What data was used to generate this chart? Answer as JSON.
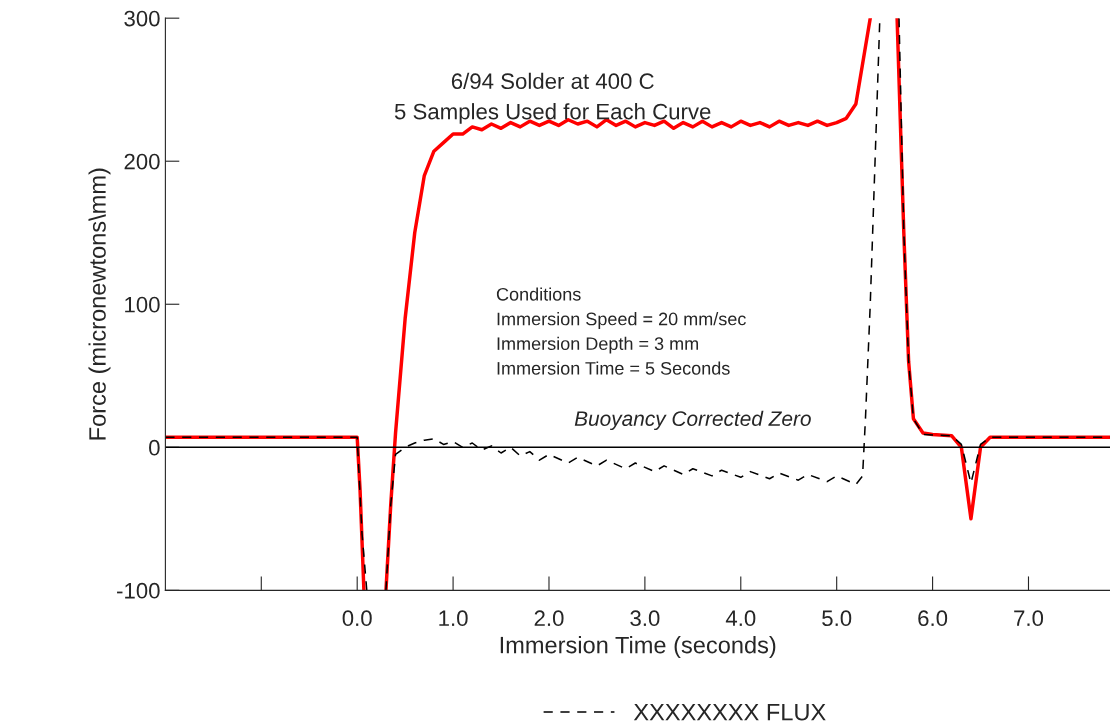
{
  "chart_data": {
    "type": "line",
    "xlabel": "Immersion Time (seconds)",
    "ylabel": "Force (micronewtons\\mm)",
    "xlim": [
      -2,
      7.85
    ],
    "ylim": [
      -100,
      300
    ],
    "xticks": [
      {
        "value": -1,
        "label": null
      },
      {
        "value": 0,
        "label": "0.0"
      },
      {
        "value": 1,
        "label": "1.0"
      },
      {
        "value": 2,
        "label": "2.0"
      },
      {
        "value": 3,
        "label": "3.0"
      },
      {
        "value": 4,
        "label": "4.0"
      },
      {
        "value": 5,
        "label": "5.0"
      },
      {
        "value": 6,
        "label": "6.0"
      },
      {
        "value": 7,
        "label": "7.0"
      }
    ],
    "yticks": [
      -100,
      0,
      100,
      200,
      300
    ],
    "grid": false,
    "legend": "bottom",
    "annotations": [
      "6/94 Solder at 400 C\n5 Samples Used for Each Curve",
      "Conditions\nImmersion Speed = 20 mm/sec\nImmersion Depth = 3 mm\nImmersion Time = 5 Seconds"
    ],
    "ref_lines": [
      {
        "axis": "y",
        "value": 0,
        "label": "Buoyancy Corrected Zero",
        "color": "#000000",
        "line_style": "solid"
      }
    ],
    "series": [
      {
        "color": "#ff0000",
        "line_style": "solid",
        "x": [
          -2,
          0,
          0.03,
          0.07,
          0.15,
          0.3,
          0.35,
          0.4,
          0.5,
          0.6,
          0.7,
          0.8,
          0.9,
          1.0,
          1.1,
          1.2,
          1.3,
          1.4,
          1.5,
          1.6,
          1.7,
          1.8,
          1.9,
          2.0,
          2.1,
          2.2,
          2.3,
          2.4,
          2.5,
          2.6,
          2.7,
          2.8,
          2.9,
          3.0,
          3.1,
          3.2,
          3.3,
          3.4,
          3.5,
          3.6,
          3.7,
          3.8,
          3.9,
          4.0,
          4.1,
          4.2,
          4.3,
          4.4,
          4.5,
          4.6,
          4.7,
          4.8,
          4.9,
          5.0,
          5.1,
          5.2,
          5.3,
          5.35,
          5.5,
          5.63,
          5.7,
          5.75,
          5.8,
          5.9,
          6.0,
          6.2,
          6.3,
          6.4,
          6.5,
          6.6,
          7.85
        ],
        "values": [
          7,
          7,
          -30,
          -100,
          null,
          -100,
          -40,
          10,
          90,
          150,
          190,
          207,
          213,
          219,
          219,
          224,
          222,
          226,
          223,
          227,
          224,
          228,
          225,
          228,
          225,
          229,
          226,
          228,
          224,
          229,
          225,
          228,
          224,
          227,
          225,
          228,
          223,
          227,
          224,
          228,
          224,
          227,
          224,
          228,
          225,
          227,
          224,
          228,
          225,
          227,
          225,
          228,
          225,
          227,
          230,
          240,
          280,
          300,
          null,
          300,
          150,
          60,
          20,
          10,
          9,
          8,
          0,
          -50,
          0,
          7,
          7
        ]
      },
      {
        "name": "XXXXXXXX FLUX",
        "color": "#000000",
        "line_style": "dashed",
        "x": [
          -2,
          0,
          0.05,
          0.1,
          0.2,
          0.3,
          0.35,
          0.4,
          0.5,
          0.6,
          0.7,
          0.8,
          0.9,
          1.0,
          1.1,
          1.2,
          1.3,
          1.4,
          1.5,
          1.6,
          1.7,
          1.8,
          1.9,
          2.0,
          2.2,
          2.3,
          2.5,
          2.6,
          2.8,
          2.9,
          3.1,
          3.2,
          3.4,
          3.5,
          3.7,
          3.8,
          4.0,
          4.1,
          4.3,
          4.4,
          4.6,
          4.7,
          4.9,
          5.0,
          5.2,
          5.27,
          5.3,
          5.35,
          5.4,
          5.45,
          5.55,
          5.65,
          5.7,
          5.75,
          5.8,
          5.9,
          6.2,
          6.3,
          6.4,
          6.5,
          6.6,
          7.85
        ],
        "values": [
          7,
          7,
          -60,
          -100,
          null,
          -100,
          -40,
          -5,
          0,
          3,
          5,
          6,
          2,
          4,
          0,
          3,
          -2,
          1,
          -4,
          0,
          -6,
          -3,
          -9,
          -5,
          -11,
          -7,
          -13,
          -9,
          -15,
          -11,
          -17,
          -13,
          -19,
          -15,
          -20,
          -16,
          -21,
          -17,
          -22,
          -18,
          -23,
          -19,
          -24,
          -20,
          -26,
          -20,
          20,
          100,
          200,
          300,
          null,
          300,
          150,
          60,
          20,
          9,
          8,
          2,
          -25,
          2,
          7,
          7
        ]
      }
    ]
  }
}
